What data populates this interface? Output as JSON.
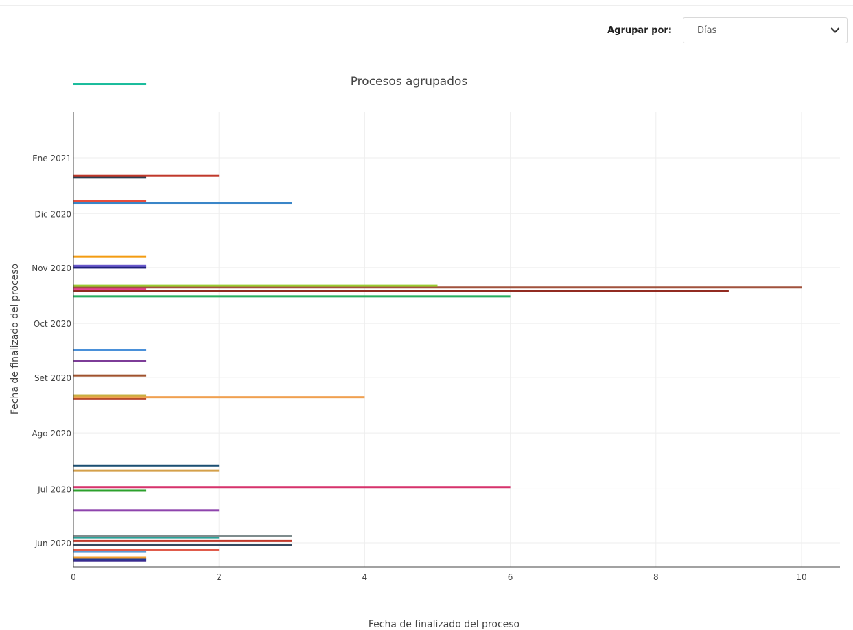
{
  "controls": {
    "group_label": "Agrupar por:",
    "group_value": "Días"
  },
  "chart_data": {
    "type": "bar",
    "orientation": "horizontal",
    "title": "Procesos agrupados",
    "xlabel": "Fecha de finalizado del proceso",
    "ylabel": "Fecha de finalizado del proceso",
    "xlim": [
      0,
      10.5
    ],
    "ylim": [
      "2020-05-22",
      "2021-02-11"
    ],
    "x_ticks": [
      0,
      2,
      4,
      6,
      8,
      10
    ],
    "y_ticks": [
      {
        "date": "2020-06-01",
        "label": "Jun 2020"
      },
      {
        "date": "2020-07-01",
        "label": "Jul 2020"
      },
      {
        "date": "2020-08-01",
        "label": "Ago 2020"
      },
      {
        "date": "2020-09-01",
        "label": "Set 2020"
      },
      {
        "date": "2020-10-01",
        "label": "Oct 2020"
      },
      {
        "date": "2020-11-01",
        "label": "Nov 2020"
      },
      {
        "date": "2020-12-01",
        "label": "Dic 2020"
      },
      {
        "date": "2021-01-01",
        "label": "Ene 2021"
      }
    ],
    "grid": true,
    "legend": "none",
    "bars": [
      {
        "date": "2020-05-22",
        "value": 1,
        "color": "#3b2b8f"
      },
      {
        "date": "2020-05-23",
        "value": 1,
        "color": "#1f3a93"
      },
      {
        "date": "2020-05-24",
        "value": 1,
        "color": "#f0a030"
      },
      {
        "date": "2020-05-27",
        "value": 1,
        "color": "#5b9bd5"
      },
      {
        "date": "2020-05-28",
        "value": 2,
        "color": "#e05a4a"
      },
      {
        "date": "2020-05-31",
        "value": 3,
        "color": "#34495e"
      },
      {
        "date": "2020-06-02",
        "value": 3,
        "color": "#c0392b"
      },
      {
        "date": "2020-06-04",
        "value": 2,
        "color": "#2aa198"
      },
      {
        "date": "2020-06-05",
        "value": 3,
        "color": "#7f8c8d"
      },
      {
        "date": "2020-06-19",
        "value": 2,
        "color": "#8e44ad"
      },
      {
        "date": "2020-06-30",
        "value": 1,
        "color": "#2ca02c"
      },
      {
        "date": "2020-07-02",
        "value": 6,
        "color": "#d6336c"
      },
      {
        "date": "2020-07-11",
        "value": 2,
        "color": "#d4a04a"
      },
      {
        "date": "2020-07-14",
        "value": 2,
        "color": "#1b4f72"
      },
      {
        "date": "2020-08-20",
        "value": 1,
        "color": "#b03020"
      },
      {
        "date": "2020-08-21",
        "value": 1,
        "color": "#8a9a1a"
      },
      {
        "date": "2020-08-21",
        "value": 4,
        "color": "#f0a050"
      },
      {
        "date": "2020-08-22",
        "value": 1,
        "color": "#c8b040"
      },
      {
        "date": "2020-09-02",
        "value": 1,
        "color": "#a0522d"
      },
      {
        "date": "2020-09-10",
        "value": 1,
        "color": "#7d3c98"
      },
      {
        "date": "2020-09-16",
        "value": 1,
        "color": "#4a90d9"
      },
      {
        "date": "2020-10-16",
        "value": 6,
        "color": "#27ae60"
      },
      {
        "date": "2020-10-19",
        "value": 9,
        "color": "#922b21"
      },
      {
        "date": "2020-10-20",
        "value": 1,
        "color": "#e84393"
      },
      {
        "date": "2020-10-21",
        "value": 10,
        "color": "#a0523d"
      },
      {
        "date": "2020-10-22",
        "value": 5,
        "color": "#9acd32"
      },
      {
        "date": "2020-11-01",
        "value": 1,
        "color": "#1f1f7a"
      },
      {
        "date": "2020-11-02",
        "value": 1,
        "color": "#6a5acd"
      },
      {
        "date": "2020-11-07",
        "value": 1,
        "color": "#f39c12"
      },
      {
        "date": "2020-12-07",
        "value": 3,
        "color": "#3a86c8"
      },
      {
        "date": "2020-12-08",
        "value": 1,
        "color": "#e74c3c"
      },
      {
        "date": "2020-12-21",
        "value": 1,
        "color": "#2c3e50"
      },
      {
        "date": "2020-12-22",
        "value": 2,
        "color": "#c0392b"
      },
      {
        "date": "2021-02-11",
        "value": 1,
        "color": "#1abc9c"
      }
    ]
  }
}
